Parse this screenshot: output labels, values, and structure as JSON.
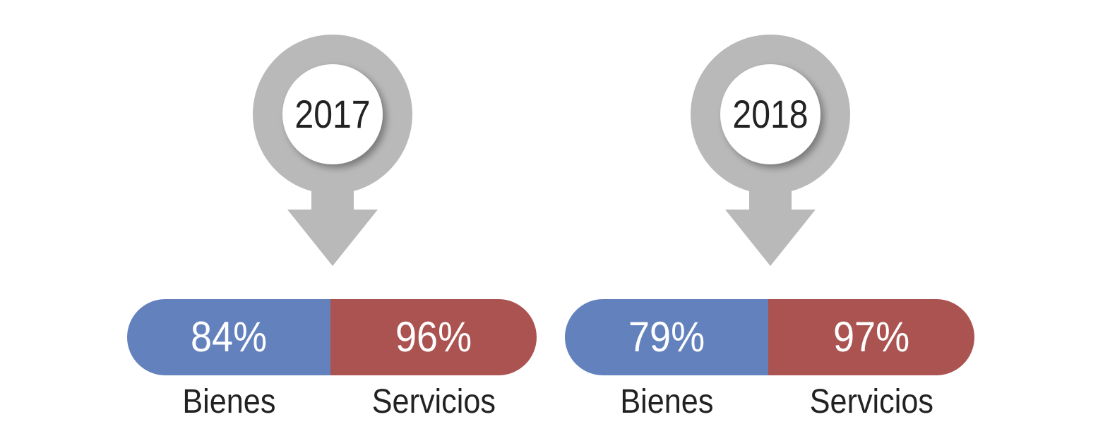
{
  "colors": {
    "pin": "#b9b9b9",
    "bienes": "#6381bd",
    "servicios": "#ab5350",
    "text": "#222222"
  },
  "panels": [
    {
      "year": "2017",
      "bienes": {
        "value": 84,
        "display": "84%",
        "label": "Bienes"
      },
      "servicios": {
        "value": 96,
        "display": "96%",
        "label": "Servicios"
      }
    },
    {
      "year": "2018",
      "bienes": {
        "value": 79,
        "display": "79%",
        "label": "Bienes"
      },
      "servicios": {
        "value": 97,
        "display": "97%",
        "label": "Servicios"
      }
    }
  ]
}
